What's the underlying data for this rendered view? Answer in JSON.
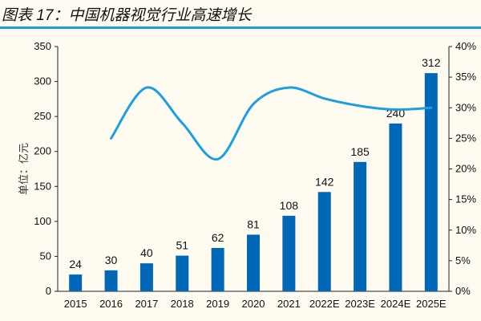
{
  "chart_data": {
    "type": "bar+line",
    "title": "图表 17：中国机器视觉行业高速增长",
    "ylabel": "单位：亿元",
    "categories": [
      "2015",
      "2016",
      "2017",
      "2018",
      "2019",
      "2020",
      "2021",
      "2022E",
      "2023E",
      "2024E",
      "2025E"
    ],
    "series": [
      {
        "type": "bar",
        "axis": "left",
        "values": [
          24,
          30,
          40,
          51,
          62,
          81,
          108,
          142,
          185,
          240,
          312
        ],
        "color": "#0068b7"
      },
      {
        "type": "line",
        "axis": "right",
        "values": [
          null,
          25.0,
          33.3,
          27.5,
          21.6,
          30.6,
          33.3,
          31.5,
          30.3,
          29.7,
          30.0
        ],
        "color": "#1a9fe0"
      }
    ],
    "ylim": [
      0,
      350
    ],
    "yticks": [
      0,
      50,
      100,
      150,
      200,
      250,
      300,
      350
    ],
    "y2lim": [
      0,
      40
    ],
    "y2ticks": [
      "0%",
      "5%",
      "10%",
      "15%",
      "20%",
      "25%",
      "30%",
      "35%",
      "40%"
    ],
    "grid": false,
    "data_labels": true
  }
}
